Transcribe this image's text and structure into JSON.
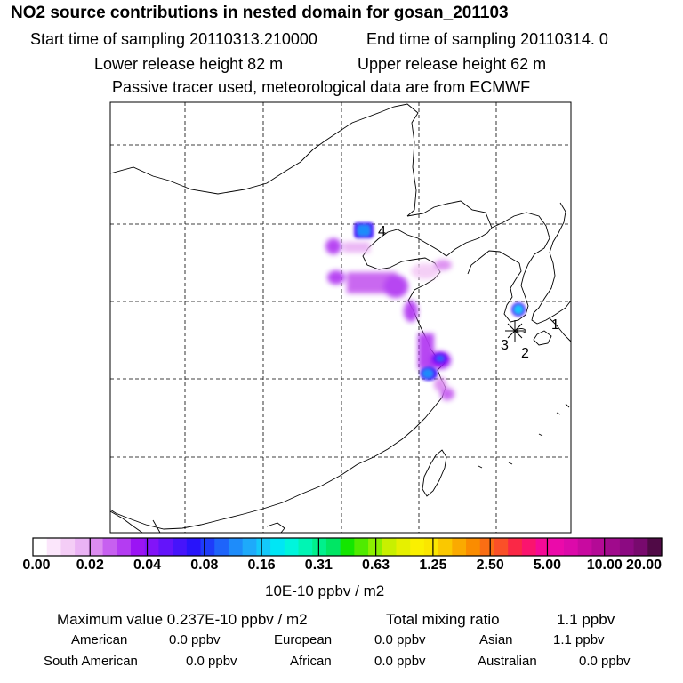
{
  "header": {
    "title": "NO2 source contributions in nested domain for gosan_201103",
    "start_label": "Start time of sampling 20110313.210000",
    "end_label": "End time of sampling 20110314.     0",
    "lower_label": "Lower release height   82 m",
    "upper_label": "Upper release height   62 m",
    "tracer_note": "Passive tracer used, meteorological data are from ECMWF"
  },
  "map": {
    "site_markers": [
      "1",
      "2",
      "3",
      "4"
    ]
  },
  "colorbar": {
    "ticks": [
      "0.00",
      "0.02",
      "0.04",
      "0.08",
      "0.16",
      "0.31",
      "0.63",
      "1.25",
      "2.50",
      "5.00",
      "10.00",
      "20.00"
    ],
    "unit": "10E-10 ppbv / m2",
    "colors": [
      "#ffffff",
      "#fbe6fb",
      "#f4cdf6",
      "#eab3f4",
      "#dc8cf0",
      "#c760f0",
      "#b43cf2",
      "#9b14f4",
      "#8214f8",
      "#6414fa",
      "#4614fa",
      "#2814fa",
      "#1e3cfa",
      "#1e64fa",
      "#1e8cfa",
      "#1eaafa",
      "#14c8fa",
      "#00e6f5",
      "#00f5dc",
      "#00f5b4",
      "#00f08c",
      "#00e664",
      "#14e600",
      "#50eb00",
      "#8cf000",
      "#c8f000",
      "#e6f000",
      "#faf000",
      "#fae600",
      "#fac800",
      "#faaa00",
      "#fa8c00",
      "#fa6e14",
      "#fa5028",
      "#fa2846",
      "#fa146e",
      "#f50a96",
      "#eb0aaa",
      "#dc0aaa",
      "#c80aa0",
      "#b40a96",
      "#a00a8c",
      "#8c0a82",
      "#780a6e",
      "#500a46"
    ]
  },
  "summary": {
    "max_label": "Maximum value  0.237E-10 ppbv / m2",
    "total_label": "Total mixing ratio",
    "total_value": "1.1 ppbv",
    "american_label": "American",
    "american_value": "0.0 ppbv",
    "european_label": "European",
    "european_value": "0.0 ppbv",
    "asian_label": "Asian",
    "asian_value": "1.1 ppbv",
    "south_american_label": "South American",
    "south_american_value": "0.0 ppbv",
    "african_label": "African",
    "african_value": "0.0 ppbv",
    "australian_label": "Australian",
    "australian_value": "0.0 ppbv"
  }
}
